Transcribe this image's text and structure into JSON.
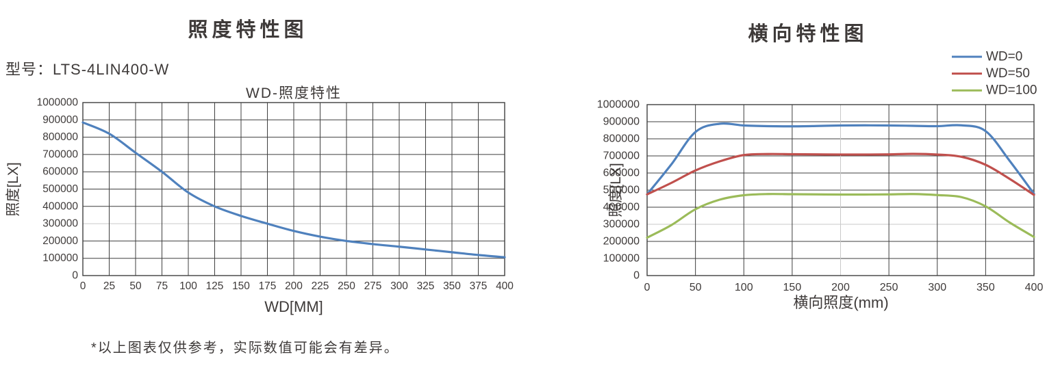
{
  "illuminance_section": {
    "title": "照度特性图",
    "model_label": "型号：LTS-4LIN400-W"
  },
  "lateral_section": {
    "title": "横向特性图"
  },
  "note": "*以上图表仅供参考，实际数值可能会有差异。",
  "colors": {
    "text": "#3e3a39",
    "grid": "#3f3f3f",
    "grid_light": "#c9c9c9",
    "wd0": "#4f81bd",
    "wd50": "#c0504d",
    "wd100": "#9bbb59"
  },
  "chart_data": [
    {
      "type": "line",
      "title": "WD-照度特性",
      "xlabel": "WD[MM]",
      "ylabel": "照度[LX]",
      "xlim": [
        0,
        400
      ],
      "ylim": [
        0,
        1000000
      ],
      "x_ticks": [
        0,
        25,
        50,
        75,
        100,
        125,
        150,
        175,
        200,
        225,
        250,
        275,
        300,
        325,
        350,
        375,
        400
      ],
      "y_tick_step": 100000,
      "grid": true,
      "light_h_grid": [
        300000
      ],
      "light_v_grid": [],
      "legend_position": "none",
      "series": [
        {
          "name": "照度",
          "color": "#4f81bd",
          "x": [
            0,
            25,
            50,
            75,
            100,
            125,
            150,
            175,
            200,
            225,
            250,
            275,
            300,
            325,
            350,
            375,
            400
          ],
          "y": [
            885000,
            820000,
            710000,
            600000,
            480000,
            400000,
            345000,
            300000,
            258000,
            225000,
            200000,
            182000,
            167000,
            151000,
            135000,
            119000,
            106000
          ]
        }
      ]
    },
    {
      "type": "line",
      "title": "横向特性图",
      "xlabel": "横向照度(mm)",
      "ylabel": "照度[LX]",
      "xlim": [
        0,
        400
      ],
      "ylim": [
        0,
        1000000
      ],
      "x_ticks": [
        0,
        50,
        100,
        150,
        200,
        250,
        300,
        350,
        400
      ],
      "y_tick_step": 100000,
      "grid": true,
      "light_h_grid": [
        300000
      ],
      "light_v_grid": [
        200
      ],
      "legend_position": "top-right-outside",
      "series": [
        {
          "name": "WD=0",
          "color": "#4f81bd",
          "x": [
            0,
            25,
            50,
            75,
            100,
            125,
            150,
            175,
            200,
            225,
            250,
            275,
            300,
            325,
            350,
            375,
            400
          ],
          "y": [
            475000,
            650000,
            840000,
            888000,
            878000,
            874000,
            873000,
            875000,
            878000,
            879000,
            878000,
            876000,
            874000,
            879000,
            845000,
            670000,
            478000
          ]
        },
        {
          "name": "WD=50",
          "color": "#c0504d",
          "x": [
            0,
            25,
            50,
            75,
            100,
            125,
            150,
            175,
            200,
            225,
            250,
            275,
            300,
            325,
            350,
            375,
            400
          ],
          "y": [
            475000,
            542000,
            615000,
            668000,
            705000,
            711000,
            710000,
            709000,
            708000,
            708000,
            709000,
            712000,
            708000,
            695000,
            648000,
            565000,
            472000
          ]
        },
        {
          "name": "WD=100",
          "color": "#9bbb59",
          "x": [
            0,
            25,
            50,
            75,
            100,
            125,
            150,
            175,
            200,
            225,
            250,
            275,
            300,
            325,
            350,
            375,
            400
          ],
          "y": [
            222000,
            295000,
            388000,
            444000,
            470000,
            477000,
            476000,
            475000,
            474000,
            474000,
            475000,
            477000,
            471000,
            459000,
            405000,
            310000,
            226000
          ]
        }
      ]
    }
  ]
}
